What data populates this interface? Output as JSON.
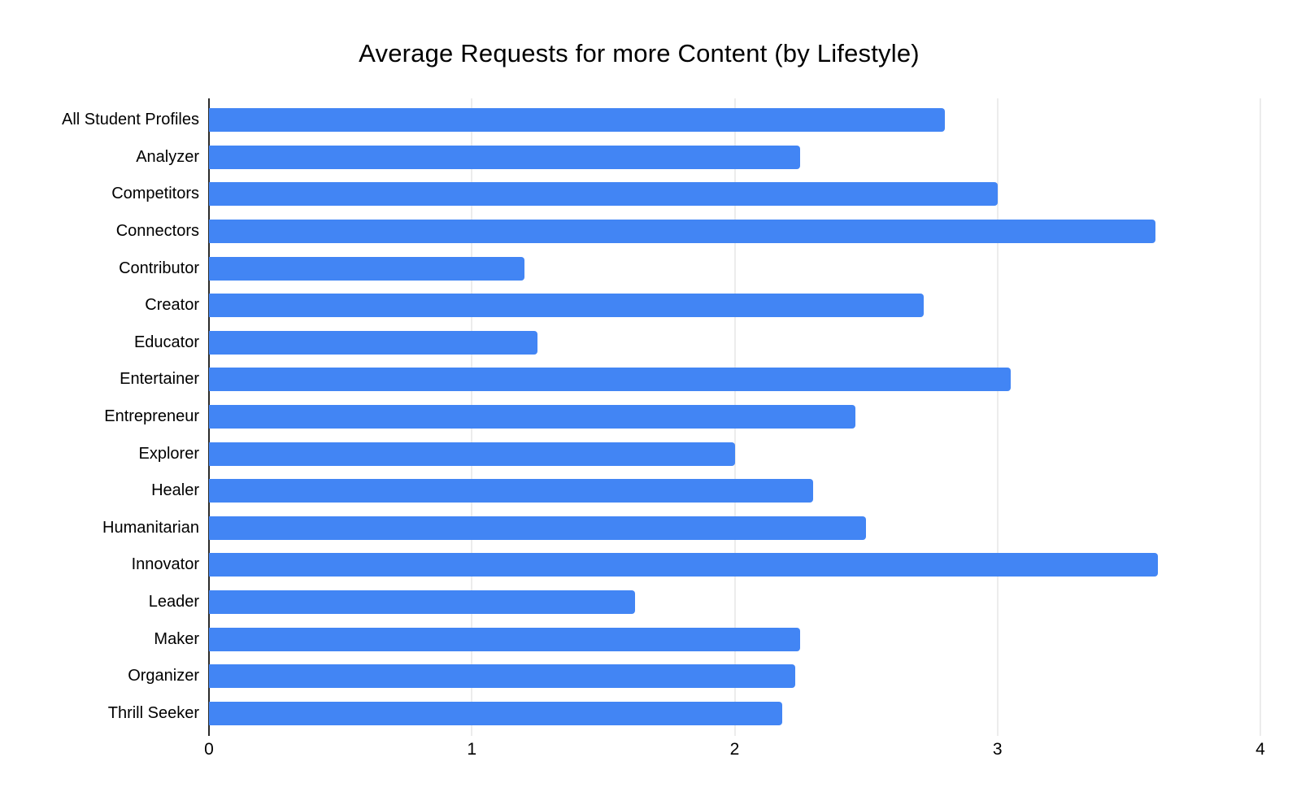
{
  "page": {
    "background": "#ffffff"
  },
  "chart_data": {
    "type": "bar",
    "orientation": "horizontal",
    "title": "Average Requests for more Content (by Lifestyle)",
    "categories": [
      "All Student Profiles",
      "Analyzer",
      "Competitors",
      "Connectors",
      "Contributor",
      "Creator",
      "Educator",
      "Entertainer",
      "Entrepreneur",
      "Explorer",
      "Healer",
      "Humanitarian",
      "Innovator",
      "Leader",
      "Maker",
      "Organizer",
      "Thrill Seeker"
    ],
    "values": [
      2.8,
      2.25,
      3.0,
      3.6,
      1.2,
      2.72,
      1.25,
      3.05,
      2.46,
      2.0,
      2.3,
      2.5,
      3.61,
      1.62,
      2.25,
      2.23,
      2.18
    ],
    "xlabel": "",
    "ylabel": "",
    "xlim": [
      0,
      4
    ],
    "x_ticks": [
      "0",
      "1",
      "2",
      "3",
      "4"
    ],
    "grid": true,
    "legend_position": "none",
    "bar_color": "#4285F4",
    "gridline_color": "#d9d9d9",
    "axis_line_color": "#2b2b2b",
    "text_color": "#000000"
  }
}
